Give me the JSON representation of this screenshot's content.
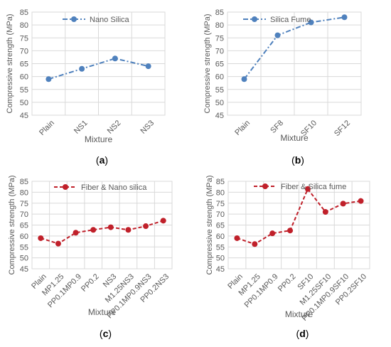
{
  "chart_data": [
    {
      "type": "line",
      "caption": "a",
      "categories": [
        "Plain",
        "NS1",
        "NS2",
        "NS3"
      ],
      "series": [
        {
          "name": "Nano Silica",
          "values": [
            59,
            63,
            67,
            64
          ],
          "color": "#4f81bd"
        }
      ],
      "xlabel": "Mixture",
      "ylabel": "Compressive strength (MPa)",
      "ylim": [
        45,
        85
      ],
      "yticks": [
        45,
        50,
        55,
        60,
        65,
        70,
        75,
        80,
        85
      ],
      "grid": true,
      "legend": "top-left",
      "line_style": "dash-dot",
      "marker": "circle"
    },
    {
      "type": "line",
      "caption": "b",
      "categories": [
        "Plain",
        "SF8",
        "SF10",
        "SF12"
      ],
      "series": [
        {
          "name": "Silica Fume",
          "values": [
            59,
            76,
            81,
            83
          ],
          "color": "#4f81bd"
        }
      ],
      "xlabel": "Mixture",
      "ylabel": "Compressive strength (MPa)",
      "ylim": [
        45,
        85
      ],
      "yticks": [
        45,
        50,
        55,
        60,
        65,
        70,
        75,
        80,
        85
      ],
      "grid": true,
      "legend": "top-left",
      "line_style": "dash-dot",
      "marker": "circle"
    },
    {
      "type": "line",
      "caption": "c",
      "categories": [
        "Plain",
        "MP1.25",
        "PP0.1MP0.9",
        "PP0.2",
        "NS3",
        "M1.25NS3",
        "PP0.1MP0.9NS3",
        "PP0.2NS3"
      ],
      "series": [
        {
          "name": "Fiber & Nano silica",
          "values": [
            59,
            56.5,
            61.5,
            62.8,
            64,
            62.8,
            64.5,
            67
          ],
          "color": "#c0202a"
        }
      ],
      "xlabel": "Mixture",
      "ylabel": "Compressive strength (MPa)",
      "ylim": [
        45,
        85
      ],
      "yticks": [
        45,
        50,
        55,
        60,
        65,
        70,
        75,
        80,
        85
      ],
      "grid": true,
      "legend": "top-center",
      "line_style": "dashed",
      "marker": "circle"
    },
    {
      "type": "line",
      "caption": "d",
      "categories": [
        "Plain",
        "MP1.25",
        "PP0.1MP0.9",
        "PP0.2",
        "SF10",
        "M1.25SF10",
        "PP0.1MP0.9SF10",
        "PP0.2SF10"
      ],
      "series": [
        {
          "name": "Fiber & Silica fume",
          "values": [
            59,
            56.3,
            61.2,
            62.5,
            81.5,
            71,
            74.8,
            76
          ],
          "color": "#c0202a"
        }
      ],
      "xlabel": "Mixture",
      "ylabel": "Compressive strength (MPa)",
      "ylim": [
        45,
        85
      ],
      "yticks": [
        45,
        50,
        55,
        60,
        65,
        70,
        75,
        80,
        85
      ],
      "grid": true,
      "legend": "top-center",
      "line_style": "dashed",
      "marker": "circle"
    }
  ]
}
